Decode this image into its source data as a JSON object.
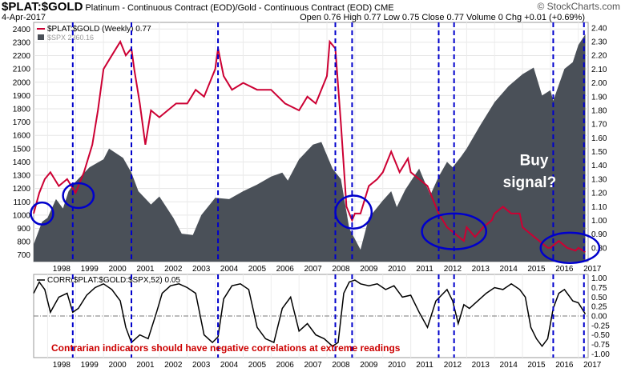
{
  "header": {
    "symbol": "$PLAT:$GOLD",
    "description": "Platinum - Continuous Contract (EOD)/Gold - Continuous Contract (EOD)",
    "exchange": "CME",
    "date": "4-Apr-2017",
    "ohlc": "Open 0.76  High 0.77  Low 0.75  Close 0.77  Volume 0  Chg +0.01 (+0.69%)",
    "brand": "© StockCharts.com"
  },
  "legend": {
    "ratio": "$PLAT:$GOLD (Weekly) 0.77",
    "spx": "$SPX 2360.16"
  },
  "colors": {
    "ratio": "#cc0033",
    "spx_fill": "#4a5058",
    "corr": "#000000",
    "signal_lines": "#0000cc",
    "circles": "#0000cc",
    "annotation": "#cc0000"
  },
  "annotations": {
    "buy_signal": [
      "Buy",
      "signal?"
    ],
    "bottom_note": "Contrarian indicators should have negative correlations at extreme readings"
  },
  "chart_data": [
    {
      "type": "area",
      "name": "$SPX",
      "xlim": [
        1997.5,
        2017.35
      ],
      "ylim": [
        650,
        2450
      ],
      "y_ticks_left": [
        700,
        800,
        900,
        1000,
        1100,
        1200,
        1300,
        1400,
        1500,
        1600,
        1700,
        1800,
        1900,
        2000,
        2100,
        2200,
        2300,
        2400
      ],
      "x_labels": [
        "1998",
        "1999",
        "2000",
        "2001",
        "2002",
        "2003",
        "2004",
        "2005",
        "2006",
        "2007",
        "2008",
        "2009",
        "2010",
        "2011",
        "2012",
        "2013",
        "2014",
        "2015",
        "2016",
        "2017"
      ],
      "x": [
        1997.5,
        1997.8,
        1998.0,
        1998.3,
        1998.55,
        1998.75,
        1999.0,
        1999.5,
        2000.0,
        2000.2,
        2000.7,
        2001.0,
        2001.25,
        2001.7,
        2002.0,
        2002.5,
        2002.8,
        2003.2,
        2003.5,
        2004.0,
        2004.5,
        2005.0,
        2005.5,
        2006.0,
        2006.4,
        2006.6,
        2007.0,
        2007.5,
        2007.8,
        2008.2,
        2008.5,
        2008.8,
        2009.0,
        2009.2,
        2009.5,
        2010.0,
        2010.3,
        2010.5,
        2010.8,
        2011.3,
        2011.7,
        2012.0,
        2012.3,
        2012.5,
        2012.8,
        2013.0,
        2013.5,
        2014.0,
        2014.5,
        2015.0,
        2015.4,
        2015.7,
        2016.0,
        2016.1,
        2016.5,
        2016.8,
        2017.0,
        2017.25
      ],
      "values": [
        780,
        950,
        980,
        1120,
        1050,
        1180,
        1250,
        1360,
        1420,
        1500,
        1430,
        1320,
        1180,
        1080,
        1140,
        980,
        860,
        850,
        1000,
        1130,
        1120,
        1180,
        1230,
        1290,
        1320,
        1260,
        1420,
        1530,
        1550,
        1350,
        1270,
        900,
        820,
        740,
        980,
        1110,
        1180,
        1060,
        1190,
        1350,
        1150,
        1290,
        1400,
        1360,
        1440,
        1500,
        1680,
        1850,
        1970,
        2060,
        2110,
        1900,
        1940,
        1860,
        2100,
        2150,
        2280,
        2360
      ]
    },
    {
      "type": "line",
      "name": "$PLAT:$GOLD (Weekly)",
      "xlim": [
        1997.5,
        2017.35
      ],
      "ylim": [
        0.7,
        2.44
      ],
      "y_ticks_right": [
        0.8,
        0.9,
        1.0,
        1.1,
        1.2,
        1.3,
        1.4,
        1.5,
        1.6,
        1.7,
        1.8,
        1.9,
        2.0,
        2.1,
        2.2,
        2.3,
        2.4
      ],
      "x": [
        1997.5,
        1997.7,
        1997.9,
        1998.1,
        1998.4,
        1998.7,
        1999.0,
        1999.3,
        1999.6,
        1999.8,
        2000.0,
        2000.3,
        2000.6,
        2000.8,
        2001.0,
        2001.1,
        2001.3,
        2001.5,
        2001.7,
        2002.0,
        2002.3,
        2002.6,
        2003.0,
        2003.3,
        2003.6,
        2004.0,
        2004.1,
        2004.3,
        2004.6,
        2005.0,
        2005.5,
        2006.0,
        2006.5,
        2007.0,
        2007.3,
        2007.6,
        2008.0,
        2008.1,
        2008.3,
        2008.5,
        2008.7,
        2008.9,
        2009.0,
        2009.2,
        2009.5,
        2009.8,
        2010.0,
        2010.3,
        2010.6,
        2010.9,
        2011.0,
        2011.3,
        2011.6,
        2011.9,
        2012.0,
        2012.3,
        2012.6,
        2012.9,
        2013.0,
        2013.3,
        2013.6,
        2013.9,
        2014.0,
        2014.3,
        2014.6,
        2014.9,
        2015.0,
        2015.3,
        2015.6,
        2015.9,
        2016.0,
        2016.3,
        2016.6,
        2016.9,
        2017.0,
        2017.25
      ],
      "values": [
        1.05,
        1.2,
        1.3,
        1.35,
        1.25,
        1.3,
        1.2,
        1.35,
        1.55,
        1.8,
        2.1,
        2.2,
        2.3,
        2.2,
        2.25,
        2.1,
        1.85,
        1.55,
        1.8,
        1.75,
        1.8,
        1.85,
        1.85,
        1.95,
        1.9,
        2.1,
        2.25,
        2.05,
        1.95,
        2.0,
        1.95,
        1.95,
        1.85,
        1.8,
        1.9,
        1.85,
        2.05,
        2.3,
        2.25,
        1.7,
        1.1,
        1.0,
        1.05,
        1.05,
        1.25,
        1.3,
        1.35,
        1.5,
        1.35,
        1.45,
        1.35,
        1.3,
        1.25,
        1.1,
        1.05,
        0.95,
        0.9,
        0.85,
        0.95,
        0.88,
        0.95,
        1.0,
        1.05,
        1.1,
        1.05,
        1.05,
        0.95,
        0.9,
        0.85,
        0.8,
        0.8,
        0.85,
        0.8,
        0.78,
        0.8,
        0.77
      ]
    },
    {
      "type": "line",
      "name": "CORR($PLAT:$GOLD:$SPX,52) 0.05",
      "xlim": [
        1997.5,
        2017.35
      ],
      "ylim": [
        -1.1,
        1.1
      ],
      "y_ticks_right": [
        -1.0,
        -0.75,
        -0.5,
        -0.25,
        0.0,
        0.25,
        0.5,
        0.75,
        1.0
      ],
      "x": [
        1997.5,
        1997.7,
        1997.9,
        1998.1,
        1998.4,
        1998.7,
        1998.9,
        1999.1,
        1999.4,
        1999.7,
        2000.0,
        2000.3,
        2000.6,
        2000.8,
        2001.0,
        2001.3,
        2001.6,
        2001.9,
        2002.1,
        2002.4,
        2002.7,
        2003.0,
        2003.3,
        2003.6,
        2003.9,
        2004.1,
        2004.3,
        2004.6,
        2004.9,
        2005.2,
        2005.5,
        2005.8,
        2006.1,
        2006.4,
        2006.7,
        2007.0,
        2007.3,
        2007.6,
        2007.9,
        2008.2,
        2008.4,
        2008.6,
        2008.8,
        2009.0,
        2009.2,
        2009.5,
        2009.8,
        2010.1,
        2010.4,
        2010.7,
        2011.0,
        2011.3,
        2011.6,
        2011.9,
        2012.1,
        2012.3,
        2012.5,
        2012.7,
        2012.9,
        2013.1,
        2013.4,
        2013.7,
        2014.0,
        2014.3,
        2014.6,
        2014.9,
        2015.1,
        2015.3,
        2015.5,
        2015.7,
        2015.9,
        2016.1,
        2016.3,
        2016.5,
        2016.8,
        2017.0,
        2017.25
      ],
      "values": [
        0.6,
        0.9,
        0.7,
        0.1,
        0.5,
        0.6,
        0.1,
        0.2,
        0.55,
        0.75,
        0.85,
        0.7,
        0.4,
        -0.3,
        -0.7,
        -0.5,
        -0.6,
        0.1,
        0.6,
        0.8,
        0.85,
        0.75,
        0.6,
        -0.5,
        -0.7,
        -0.55,
        0.45,
        0.8,
        0.85,
        0.7,
        -0.3,
        -0.6,
        -0.7,
        0.2,
        0.5,
        -0.4,
        -0.2,
        -0.5,
        -0.6,
        -0.8,
        -0.7,
        0.6,
        0.9,
        0.95,
        0.85,
        0.8,
        0.85,
        0.7,
        0.8,
        0.5,
        0.55,
        0.1,
        -0.3,
        0.4,
        0.55,
        0.7,
        0.4,
        -0.2,
        0.3,
        0.2,
        0.4,
        0.6,
        0.75,
        0.7,
        0.85,
        0.7,
        0.5,
        -0.3,
        -0.6,
        -0.8,
        -0.6,
        0.2,
        0.6,
        0.7,
        0.4,
        0.35,
        0.05
      ]
    }
  ],
  "signals": [
    1998.9,
    2001.0,
    2004.1,
    2008.3,
    2008.9,
    2012.0,
    2012.55,
    2016.1,
    2017.2
  ],
  "circles": [
    {
      "x": 1997.8,
      "y": 1.05,
      "rx": 0.4,
      "ry": 0.08
    },
    {
      "x": 1999.1,
      "y": 1.18,
      "rx": 0.55,
      "ry": 0.09
    },
    {
      "x": 2008.95,
      "y": 1.06,
      "rx": 0.65,
      "ry": 0.12
    },
    {
      "x": 2012.55,
      "y": 0.92,
      "rx": 1.15,
      "ry": 0.13
    },
    {
      "x": 2016.7,
      "y": 0.8,
      "rx": 1.05,
      "ry": 0.11
    }
  ]
}
